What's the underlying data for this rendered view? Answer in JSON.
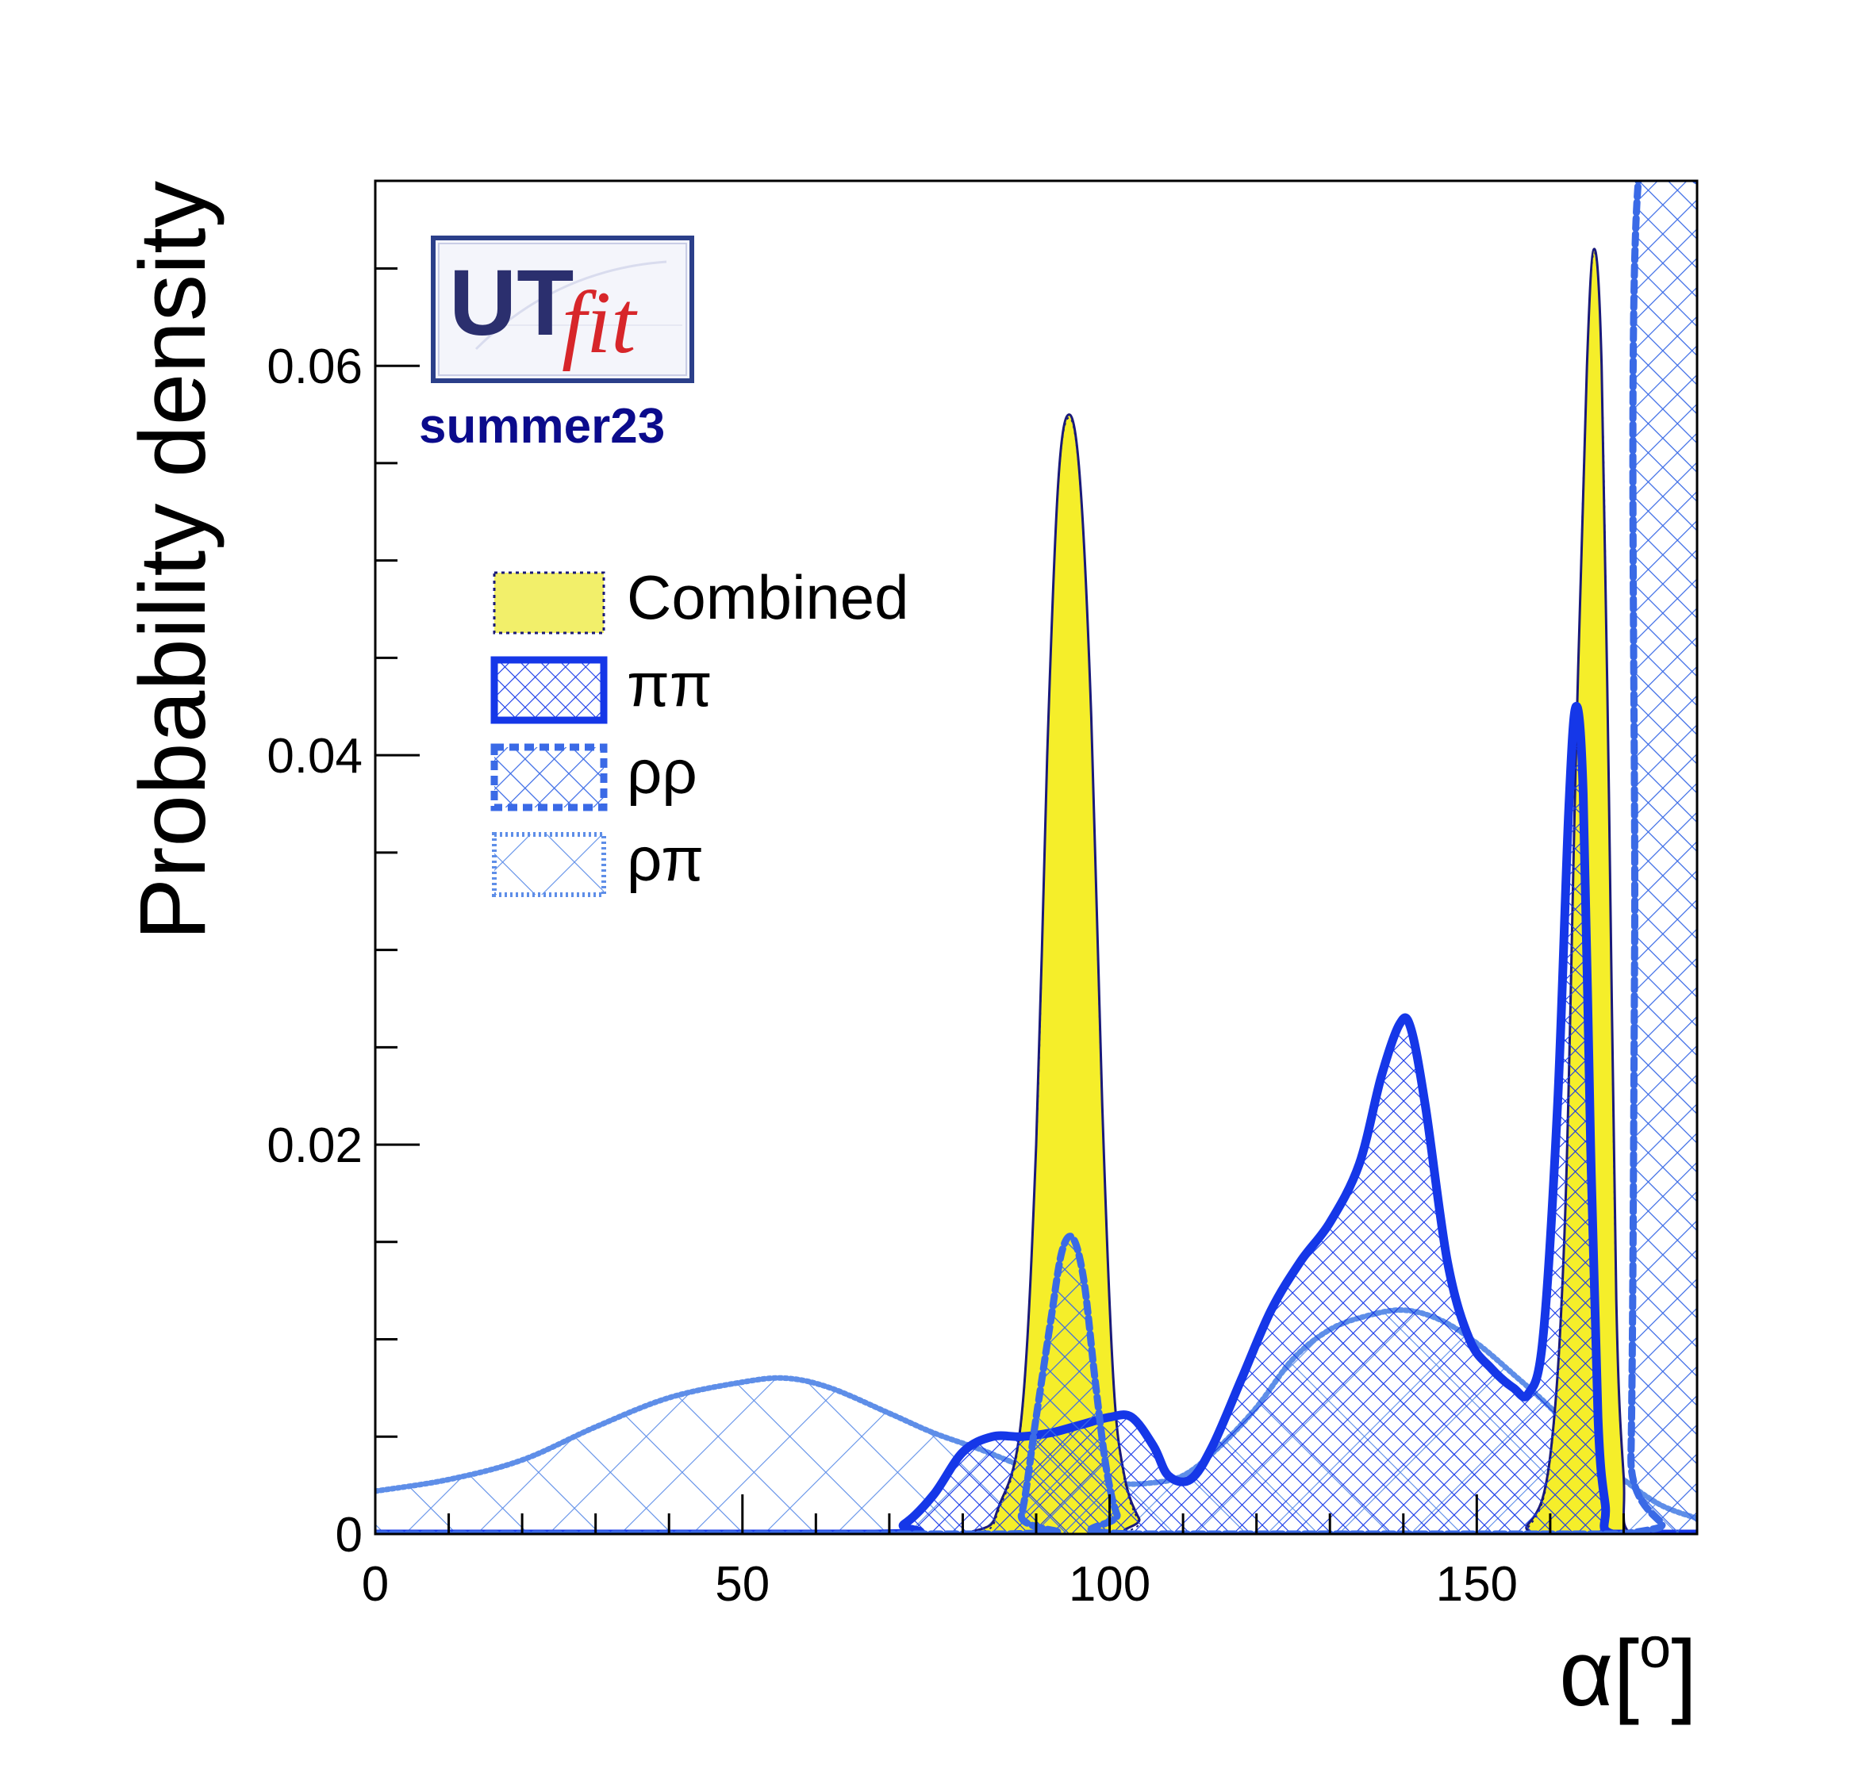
{
  "logo": {
    "text_main": "UT",
    "text_script": "fit",
    "colors": {
      "main": "#2b2f6e",
      "script": "#d7262a",
      "border": "#2b3f8a"
    }
  },
  "subtitle": "summer23",
  "colors": {
    "combined_fill": "#f5ee2a",
    "combined_legend_fill": "#f2ef6a",
    "combined_line": "#1a1a7a",
    "pipi": "#1537e8",
    "rhorho": "#3a6ae6",
    "rhopi": "#5e8ee8",
    "subtitle": "#0b0b8c"
  },
  "chart_data": {
    "type": "area",
    "title": "",
    "xlabel_base": "α[",
    "xlabel_sup": "o",
    "xlabel_end": "]",
    "ylabel": "Probability density",
    "xlim": [
      0,
      180
    ],
    "ylim": [
      0,
      0.0695
    ],
    "grid": false,
    "legend_position": "top-left",
    "x_ticks": [
      {
        "value": 0,
        "label": "0"
      },
      {
        "value": 50,
        "label": "50"
      },
      {
        "value": 100,
        "label": "100"
      },
      {
        "value": 150,
        "label": "150"
      }
    ],
    "y_ticks": [
      {
        "value": 0,
        "label": "0"
      },
      {
        "value": 0.02,
        "label": "0.02"
      },
      {
        "value": 0.04,
        "label": "0.04"
      },
      {
        "value": 0.06,
        "label": "0.06"
      }
    ],
    "legend": [
      "Combined",
      "ππ",
      "ρρ",
      "ρπ"
    ],
    "series": [
      {
        "name": "Combined",
        "points": [
          [
            0,
            0
          ],
          [
            70,
            0
          ],
          [
            82,
            0.0002
          ],
          [
            85,
            0.0015
          ],
          [
            88,
            0.006
          ],
          [
            90,
            0.02
          ],
          [
            91.5,
            0.04
          ],
          [
            93,
            0.054
          ],
          [
            94.5,
            0.0575
          ],
          [
            96,
            0.054
          ],
          [
            97.5,
            0.042
          ],
          [
            99,
            0.022
          ],
          [
            100.5,
            0.008
          ],
          [
            102,
            0.003
          ],
          [
            104,
            0.0008
          ],
          [
            106,
            0
          ],
          [
            152,
            0
          ],
          [
            157,
            0.0005
          ],
          [
            160,
            0.004
          ],
          [
            162,
            0.016
          ],
          [
            163.5,
            0.04
          ],
          [
            165,
            0.06
          ],
          [
            166,
            0.066
          ],
          [
            167,
            0.06
          ],
          [
            168,
            0.038
          ],
          [
            169,
            0.012
          ],
          [
            170,
            0.003
          ],
          [
            171,
            0
          ],
          [
            180,
            0
          ]
        ]
      },
      {
        "name": "ππ",
        "points": [
          [
            0,
            0
          ],
          [
            68,
            0
          ],
          [
            72,
            0.0005
          ],
          [
            76,
            0.002
          ],
          [
            80,
            0.0042
          ],
          [
            84,
            0.005
          ],
          [
            88,
            0.005
          ],
          [
            92,
            0.0052
          ],
          [
            96,
            0.0056
          ],
          [
            100,
            0.006
          ],
          [
            103,
            0.006
          ],
          [
            106,
            0.0045
          ],
          [
            108,
            0.003
          ],
          [
            111,
            0.0028
          ],
          [
            114,
            0.0045
          ],
          [
            118,
            0.008
          ],
          [
            122,
            0.0115
          ],
          [
            126,
            0.014
          ],
          [
            130,
            0.016
          ],
          [
            134,
            0.019
          ],
          [
            137,
            0.0235
          ],
          [
            139.5,
            0.0262
          ],
          [
            141,
            0.026
          ],
          [
            143,
            0.022
          ],
          [
            146,
            0.014
          ],
          [
            149,
            0.01
          ],
          [
            152,
            0.0085
          ],
          [
            155,
            0.0075
          ],
          [
            157,
            0.0072
          ],
          [
            159,
            0.01
          ],
          [
            161,
            0.022
          ],
          [
            162.5,
            0.037
          ],
          [
            163.5,
            0.0425
          ],
          [
            164.5,
            0.038
          ],
          [
            165.5,
            0.02
          ],
          [
            166.5,
            0.006
          ],
          [
            167.5,
            0.0015
          ],
          [
            168.5,
            0
          ],
          [
            180,
            0
          ]
        ]
      },
      {
        "name": "ρρ",
        "points": [
          [
            0,
            0
          ],
          [
            86,
            0
          ],
          [
            88,
            0.001
          ],
          [
            90,
            0.006
          ],
          [
            92,
            0.011
          ],
          [
            93.5,
            0.0145
          ],
          [
            95,
            0.0152
          ],
          [
            96.5,
            0.013
          ],
          [
            98,
            0.008
          ],
          [
            99.5,
            0.0035
          ],
          [
            101,
            0.001
          ],
          [
            103,
            0
          ],
          [
            170,
            0
          ],
          [
            171,
            0.004
          ],
          [
            171.5,
            0.03
          ],
          [
            172,
            0.0695
          ],
          [
            180,
            0.0695
          ]
        ]
      },
      {
        "name": "ρπ",
        "points": [
          [
            0,
            0.0022
          ],
          [
            10,
            0.0028
          ],
          [
            20,
            0.0038
          ],
          [
            30,
            0.0055
          ],
          [
            40,
            0.007
          ],
          [
            50,
            0.0078
          ],
          [
            56,
            0.008
          ],
          [
            62,
            0.0075
          ],
          [
            70,
            0.0062
          ],
          [
            76,
            0.0052
          ],
          [
            82,
            0.0044
          ],
          [
            86,
            0.0038
          ],
          [
            90,
            0.0032
          ],
          [
            95,
            0.0028
          ],
          [
            100,
            0.0026
          ],
          [
            105,
            0.0026
          ],
          [
            110,
            0.003
          ],
          [
            115,
            0.0045
          ],
          [
            120,
            0.0065
          ],
          [
            125,
            0.009
          ],
          [
            130,
            0.0105
          ],
          [
            135,
            0.0112
          ],
          [
            140,
            0.0115
          ],
          [
            145,
            0.011
          ],
          [
            150,
            0.0098
          ],
          [
            155,
            0.0082
          ],
          [
            160,
            0.0065
          ],
          [
            165,
            0.0045
          ],
          [
            170,
            0.0028
          ],
          [
            175,
            0.0015
          ],
          [
            180,
            0.0008
          ]
        ]
      }
    ]
  }
}
